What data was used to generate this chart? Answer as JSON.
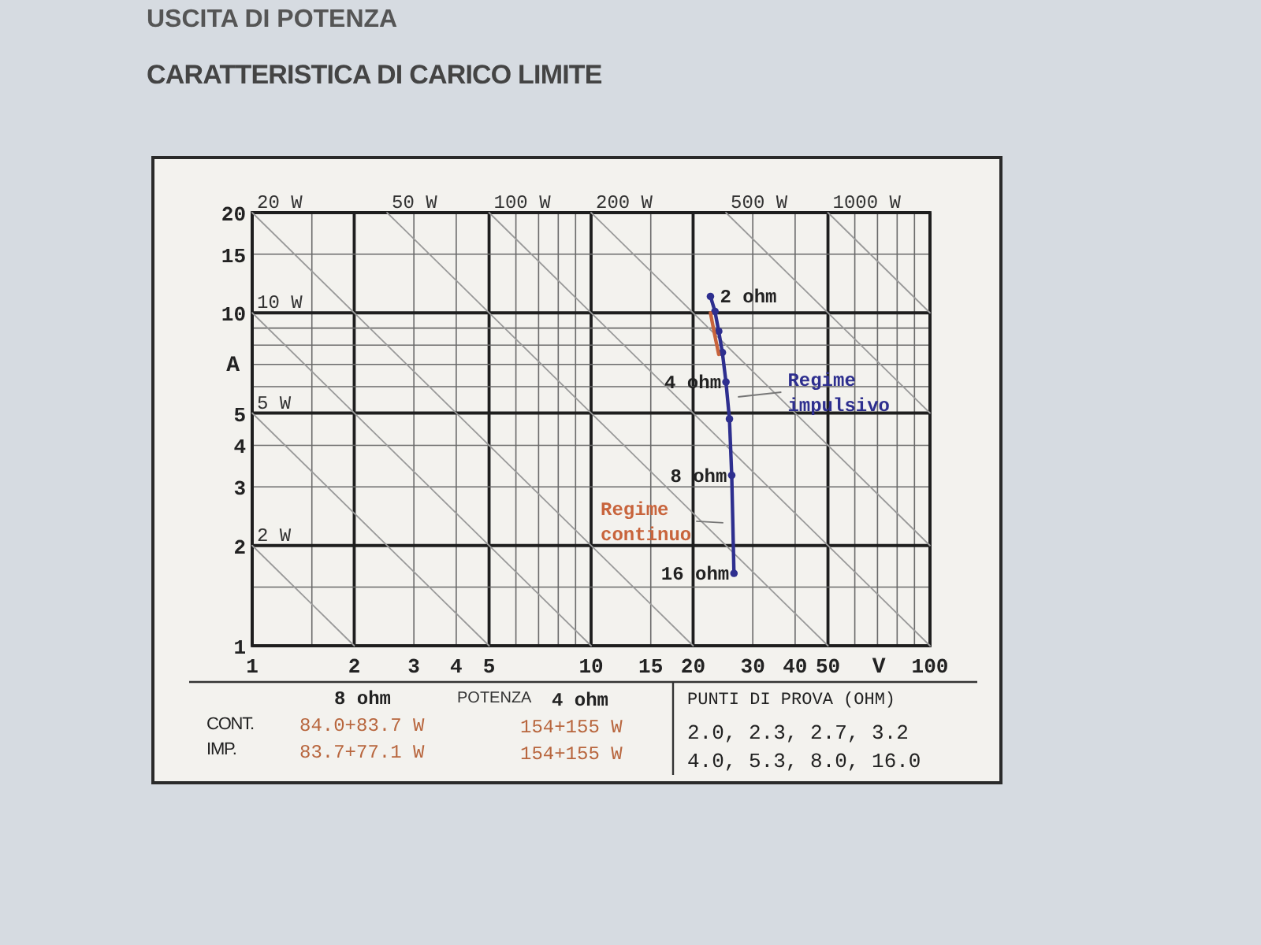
{
  "chart_data": {
    "type": "line",
    "title": "USCITA DI POTENZA",
    "subtitle": "CARATTERISTICA DI CARICO LIMITE",
    "xlabel": "V",
    "ylabel": "A",
    "log": "xy",
    "xlim": [
      1,
      100
    ],
    "ylim": [
      1,
      20
    ],
    "xticks": [
      1,
      {
        "value": 1.5,
        "label": null
      },
      2,
      3,
      4,
      5,
      {
        "value": 6,
        "label": null
      },
      {
        "value": 7,
        "label": null
      },
      {
        "value": 8,
        "label": null
      },
      {
        "value": 9,
        "label": null
      },
      10,
      15,
      20,
      30,
      40,
      50,
      {
        "value": 60,
        "label": null
      },
      {
        "value": 70,
        "label": null
      },
      {
        "value": 80,
        "label": null
      },
      {
        "value": 90,
        "label": null
      },
      100
    ],
    "yticks": [
      1,
      {
        "value": 1.5,
        "label": null
      },
      2,
      3,
      4,
      5,
      {
        "value": 6,
        "label": null
      },
      {
        "value": 7,
        "label": null
      },
      {
        "value": 8,
        "label": null
      },
      {
        "value": 9,
        "label": null
      },
      10,
      15,
      20
    ],
    "grid": true,
    "marker": "circle",
    "series": [
      {
        "color": "#9a9a9a",
        "marker": "none",
        "x": [
          1,
          2
        ],
        "values": [
          2,
          1
        ]
      },
      {
        "color": "#9a9a9a",
        "marker": "none",
        "x": [
          1,
          5
        ],
        "values": [
          5,
          1
        ]
      },
      {
        "color": "#9a9a9a",
        "marker": "none",
        "x": [
          1,
          10
        ],
        "values": [
          10,
          1
        ]
      },
      {
        "color": "#9a9a9a",
        "marker": "none",
        "x": [
          1,
          20
        ],
        "values": [
          20,
          1
        ]
      },
      {
        "color": "#9a9a9a",
        "marker": "none",
        "x": [
          2.5,
          50
        ],
        "values": [
          20,
          1
        ]
      },
      {
        "color": "#9a9a9a",
        "marker": "none",
        "x": [
          5,
          100
        ],
        "values": [
          20,
          1
        ]
      },
      {
        "color": "#9a9a9a",
        "marker": "none",
        "x": [
          10,
          100
        ],
        "values": [
          20,
          2
        ]
      },
      {
        "color": "#9a9a9a",
        "marker": "none",
        "x": [
          25,
          100
        ],
        "values": [
          20,
          5
        ]
      },
      {
        "color": "#9a9a9a",
        "marker": "none",
        "x": [
          50,
          100
        ],
        "values": [
          20,
          10
        ]
      },
      {
        "name": "Regime impulsivo",
        "color": "#2e2f8f",
        "x": [
          22.5,
          23.2,
          23.8,
          24.4,
          25.0,
          25.6,
          26.0,
          26.4
        ],
        "values": [
          11.2,
          10.1,
          8.8,
          7.6,
          6.2,
          4.8,
          3.25,
          1.65
        ]
      },
      {
        "name": "Regime continuo",
        "color": "#c8643c",
        "marker": "none",
        "x": [
          22.5,
          23.1,
          23.8
        ],
        "values": [
          10.0,
          8.7,
          7.5
        ]
      }
    ],
    "annotations": [
      {
        "text": "20 W",
        "x": 1,
        "y": 20
      },
      {
        "text": "50 W",
        "x": 2.5,
        "y": 20
      },
      {
        "text": "100 W",
        "x": 5,
        "y": 20
      },
      {
        "text": "200 W",
        "x": 10,
        "y": 20
      },
      {
        "text": "500 W",
        "x": 25,
        "y": 20
      },
      {
        "text": "1000 W",
        "x": 50,
        "y": 20
      },
      {
        "text": "10 W",
        "x": 1,
        "y": 10
      },
      {
        "text": "5 W",
        "x": 1,
        "y": 5
      },
      {
        "text": "2 W",
        "x": 1,
        "y": 2
      },
      {
        "text": "2 ohm",
        "x": 22.5,
        "y": 11.2
      },
      {
        "text": "4 ohm",
        "x": 25.0,
        "y": 6.2
      },
      {
        "text": "8 ohm",
        "x": 26.0,
        "y": 3.25
      },
      {
        "text": "16 ohm",
        "x": 26.4,
        "y": 1.65
      },
      "8 ohm",
      "POTENZA",
      "4 ohm",
      "CONT.",
      "84.0+83.7 W",
      "154+155 W",
      "IMP.",
      "83.7+77.1 W",
      "154+155 W",
      "PUNTI DI PROVA (OHM)",
      "2.0, 2.3, 2.7, 3.2",
      "4.0, 5.3, 8.0, 16.0"
    ]
  }
}
